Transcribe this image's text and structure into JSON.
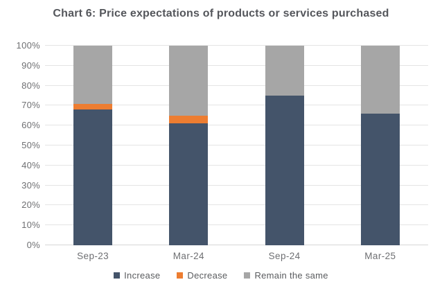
{
  "title": "Chart 6: Price expectations of products or services purchased",
  "chart_data": {
    "type": "bar",
    "stacked": true,
    "title": "Chart 6: Price expectations of products or services purchased",
    "categories": [
      "Sep-23",
      "Mar-24",
      "Sep-24",
      "Mar-25"
    ],
    "series": [
      {
        "name": "Increase",
        "color": "#44546A",
        "values": [
          68,
          61,
          75,
          66
        ]
      },
      {
        "name": "Decrease",
        "color": "#ED7D31",
        "values": [
          3,
          4,
          0,
          0
        ]
      },
      {
        "name": "Remain the same",
        "color": "#A6A6A6",
        "values": [
          29,
          35,
          25,
          34
        ]
      }
    ],
    "xlabel": "",
    "ylabel": "",
    "ylim": [
      0,
      100
    ],
    "y_ticks": [
      "0%",
      "10%",
      "20%",
      "30%",
      "40%",
      "50%",
      "60%",
      "70%",
      "80%",
      "90%",
      "100%"
    ],
    "grid": true,
    "legend_position": "bottom"
  },
  "colors": {
    "title_text": "#54565B",
    "axis_text": "#6E6F72",
    "gridline": "#E4E4E4",
    "axis_line": "#D6D6D6",
    "background": "#FFFFFF"
  }
}
